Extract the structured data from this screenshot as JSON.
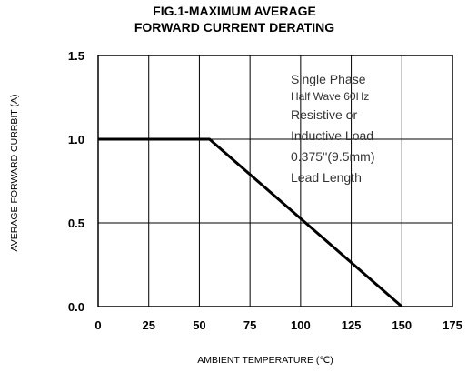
{
  "chart_data": {
    "type": "line",
    "title_lines": [
      "FIG.1-MAXIMUM AVERAGE",
      "FORWARD CURRENT DERATING"
    ],
    "xlabel": "AMBIENT TEMPERATURE (℃)",
    "ylabel": "AVERAGE FORWARD CURRBIT (A)",
    "xlim": [
      0,
      175
    ],
    "ylim": [
      0,
      1.5
    ],
    "x_ticks": [
      0,
      25,
      50,
      75,
      100,
      125,
      150,
      175
    ],
    "x_tick_labels": [
      "0",
      "25",
      "50",
      "75",
      "100",
      "125",
      "150",
      "175"
    ],
    "y_ticks": [
      0,
      0.5,
      1.0,
      1.5
    ],
    "y_tick_labels": [
      "0.0",
      "0.5",
      "1.0",
      "1.5"
    ],
    "grid": true,
    "series": [
      {
        "x": [
          0,
          55,
          150
        ],
        "y": [
          1.0,
          1.0,
          0.0
        ]
      }
    ],
    "annotation_lines": [
      "Single Phase",
      "Half Wave 60Hz",
      "Resistive or",
      "Inductive Load",
      "0.375''(9.5mm)",
      "Lead Length"
    ]
  }
}
